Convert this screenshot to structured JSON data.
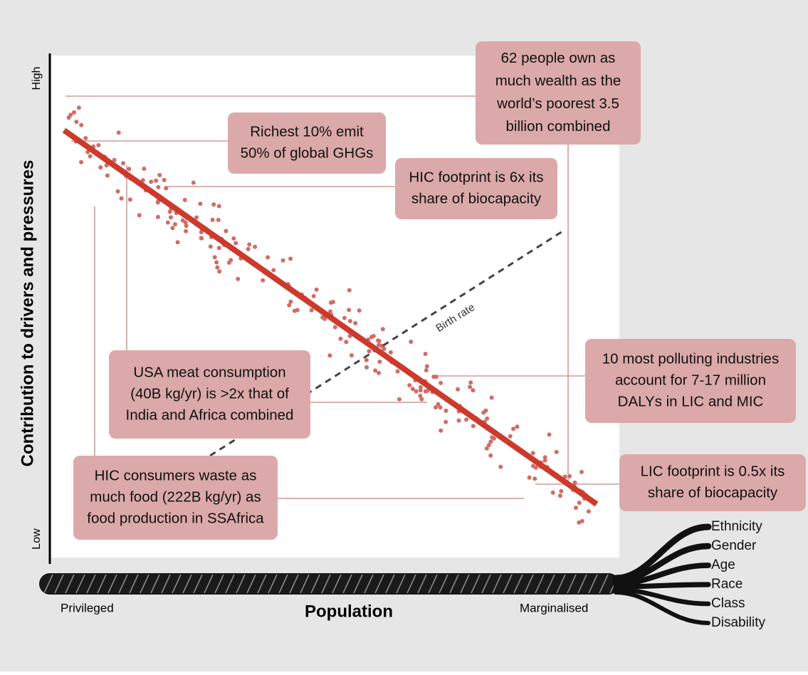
{
  "axis": {
    "y_label": "Contribution to drivers and pressures",
    "y_high": "High",
    "y_low": "Low",
    "x_label": "Population",
    "x_left": "Privileged",
    "x_right": "Marginalised"
  },
  "trend_label": "Birth rate",
  "callouts": [
    {
      "lines": [
        "62 people own as",
        "much wealth as the",
        "world’s poorest 3.5",
        "billion combined"
      ]
    },
    {
      "lines": [
        "Richest 10% emit",
        "50% of global GHGs"
      ]
    },
    {
      "lines": [
        "HIC footprint is 6x its",
        "share of biocapacity"
      ]
    },
    {
      "lines": [
        "USA meat consumption",
        "(40B kg/yr) is >2x that of",
        "India and Africa combined"
      ]
    },
    {
      "lines": [
        "10 most polluting industries",
        "account for 7-17 million",
        "DALYs in LIC and MIC"
      ]
    },
    {
      "lines": [
        "LIC footprint is 0.5x its",
        "share of biocapacity"
      ]
    },
    {
      "lines": [
        "HIC consumers waste as",
        "much food (222B kg/yr) as",
        "food production in SSAfrica"
      ]
    }
  ],
  "strands": [
    "Ethnicity",
    "Gender",
    "Age",
    "Race",
    "Class",
    "Disability"
  ]
}
